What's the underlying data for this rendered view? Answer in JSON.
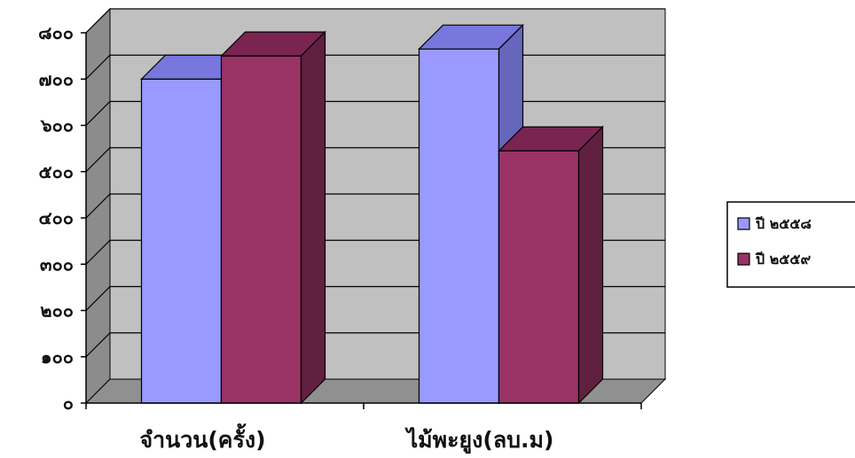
{
  "chart_data": {
    "type": "bar",
    "title": "",
    "xlabel": "",
    "ylabel": "",
    "categories": [
      "จำนวน(ครั้ง)",
      "ไม้พะยูง(ลบ.ม)"
    ],
    "series": [
      {
        "name": "ปี ๒๕๕๘",
        "values": [
          700,
          765
        ],
        "color": "#9999ff",
        "top_color": "#7777dd",
        "side_color": "#6666bb"
      },
      {
        "name": "ปี ๒๕๕๙",
        "values": [
          750,
          545
        ],
        "color": "#993366",
        "top_color": "#7a2452",
        "side_color": "#602040"
      }
    ],
    "ylim": [
      0,
      800
    ],
    "yticks": [
      0,
      100,
      200,
      300,
      400,
      500,
      600,
      700,
      800
    ],
    "ytick_labels": [
      "๐",
      "๑๐๐",
      "๒๐๐",
      "๓๐๐",
      "๔๐๐",
      "๕๐๐",
      "๖๐๐",
      "๗๐๐",
      "๘๐๐"
    ],
    "grid": true,
    "legend": "right",
    "wall_color": "#c0c0c0",
    "floor_color": "#909090"
  }
}
